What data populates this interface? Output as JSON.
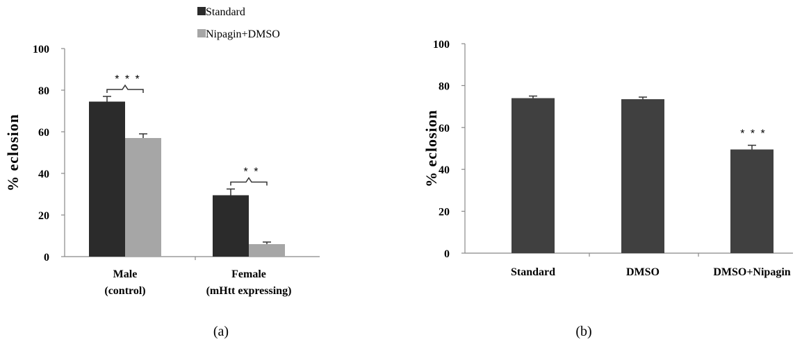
{
  "chart_data": [
    {
      "type": "bar",
      "panel_label": "(a)",
      "ylabel": "% eclosion",
      "ylim": [
        0,
        100
      ],
      "yticks": [
        0,
        20,
        40,
        60,
        80,
        100
      ],
      "categories": [
        [
          "Male",
          "(control)"
        ],
        [
          "Female",
          "(mHtt expressing)"
        ]
      ],
      "series": [
        {
          "name": "Standard",
          "color": "#2b2b2b",
          "values": [
            74.5,
            29.5
          ],
          "errors": [
            2.5,
            3
          ]
        },
        {
          "name": "Nipagin+DMSO",
          "color": "#a6a6a6",
          "values": [
            57,
            6
          ],
          "errors": [
            2,
            1
          ]
        }
      ],
      "annotations": [
        {
          "text": "* * *",
          "category_index": 0
        },
        {
          "text": "* *",
          "category_index": 1
        }
      ],
      "legend_position": "top"
    },
    {
      "type": "bar",
      "panel_label": "(b)",
      "ylabel": "% eclosion",
      "ylim": [
        0,
        100
      ],
      "yticks": [
        0,
        20,
        40,
        60,
        80,
        100
      ],
      "categories": [
        "Standard",
        "DMSO",
        "DMSO+Nipagin"
      ],
      "series": [
        {
          "color": "#404040",
          "values": [
            74,
            73.5,
            49.5
          ],
          "errors": [
            1,
            1,
            2
          ]
        }
      ],
      "annotations": [
        {
          "text": "* * *",
          "category_index": 2
        }
      ]
    }
  ]
}
